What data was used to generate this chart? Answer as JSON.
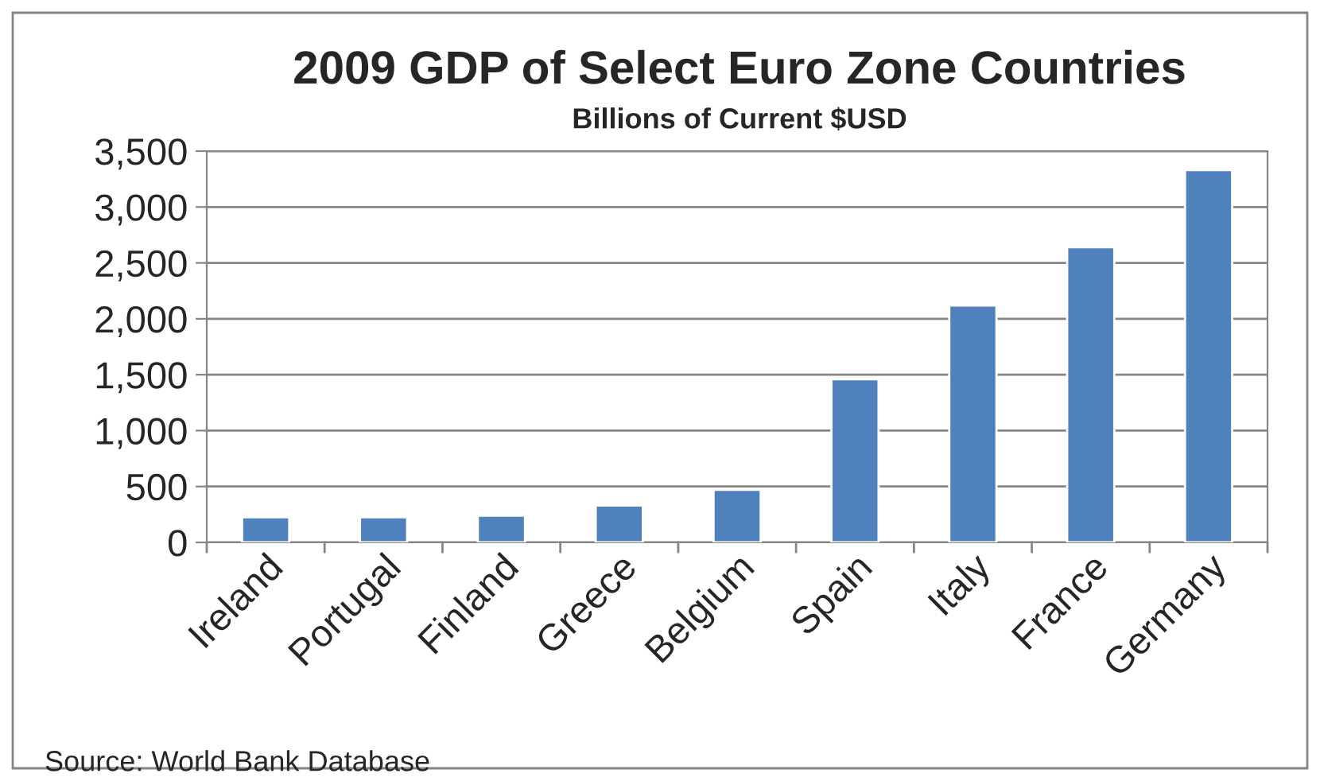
{
  "chart_data": {
    "type": "bar",
    "title": "2009 GDP of Select Euro Zone Countries",
    "subtitle": "Billions of Current $USD",
    "categories": [
      "Ireland",
      "Portugal",
      "Finland",
      "Greece",
      "Belgium",
      "Spain",
      "Italy",
      "France",
      "Germany"
    ],
    "values": [
      225,
      225,
      240,
      330,
      470,
      1460,
      2120,
      2640,
      3330
    ],
    "color": "#4f81bd",
    "ylim": [
      0,
      3500
    ],
    "yticks": [
      0,
      {
        "value": 500,
        "label": "500"
      },
      {
        "value": 1000,
        "label": "1,000"
      },
      {
        "value": 1500,
        "label": "1,500"
      },
      {
        "value": 2000,
        "label": "2,000"
      },
      {
        "value": 2500,
        "label": "2,500"
      },
      {
        "value": 3000,
        "label": "3,000"
      },
      {
        "value": 3500,
        "label": "3,500"
      }
    ],
    "grid": "y",
    "legend": false,
    "annotations": [
      "Source: World Bank Database"
    ]
  }
}
